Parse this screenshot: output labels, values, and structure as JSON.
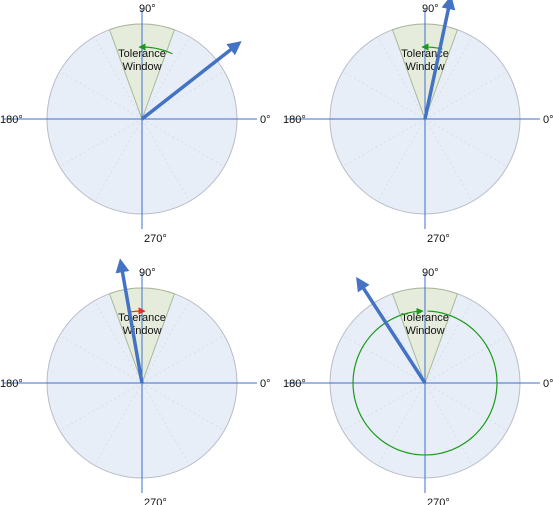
{
  "labels": {
    "angle_top": "90°",
    "angle_left": "180°",
    "angle_right": "0°",
    "angle_bottom": "270°",
    "window_line1": "Tolerance",
    "window_line2": "Window"
  },
  "colors": {
    "disc_fill": "#e8eef7",
    "disc_stroke": "#b8bcc6",
    "axis": "#3a6fd0",
    "window_fill": "#e6ecdc",
    "window_stroke": "#a9b89a",
    "arrow": "#4472c4",
    "ok_arc": "#1a9a1a",
    "bad_arc": "#e03020"
  },
  "tolerance_window_deg": [
    70,
    110
  ],
  "panels": [
    {
      "id": "top-left",
      "pointer_angle_deg": 38,
      "rotation_arc": {
        "from_deg": 65,
        "to_deg": 92,
        "color": "ok"
      }
    },
    {
      "id": "top-right",
      "pointer_angle_deg": 78,
      "rotation_arc": {
        "from_deg": 76,
        "to_deg": 92,
        "color": "ok"
      }
    },
    {
      "id": "bottom-left",
      "pointer_angle_deg": 100,
      "rotation_arc": {
        "from_deg": 101,
        "to_deg": 88,
        "color": "bad"
      }
    },
    {
      "id": "bottom-right",
      "pointer_angle_deg": 123,
      "rotation_arc": {
        "from_deg": 88,
        "to_deg": -268,
        "color": "ok"
      }
    }
  ]
}
